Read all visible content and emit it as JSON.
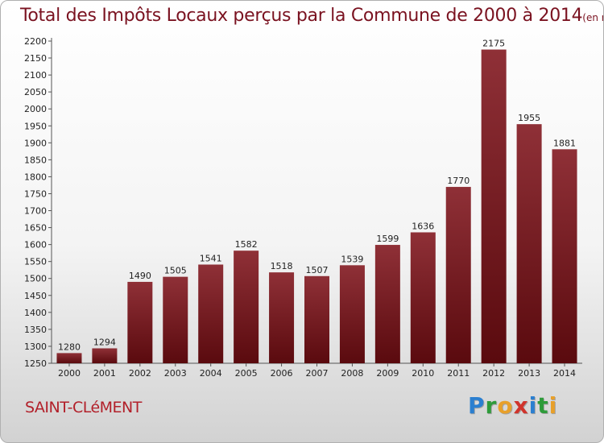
{
  "header": {
    "title": "Total des Impôts Locaux perçus par la Commune de 2000 à 2014",
    "unit": "(en milliers d'€)"
  },
  "footer": {
    "commune": "SAINT-CLéMENT",
    "logo_letters": [
      {
        "ch": "P",
        "color": "#2b7fd0"
      },
      {
        "ch": "r",
        "color": "#2e9b3a"
      },
      {
        "ch": "o",
        "color": "#e8a02a"
      },
      {
        "ch": "x",
        "color": "#d0342c"
      },
      {
        "ch": "i",
        "color": "#2b7fd0"
      },
      {
        "ch": "t",
        "color": "#2e9b3a"
      },
      {
        "ch": "i",
        "color": "#e8a02a"
      }
    ]
  },
  "chart_data": {
    "type": "bar",
    "categories": [
      "2000",
      "2001",
      "2002",
      "2003",
      "2004",
      "2005",
      "2006",
      "2007",
      "2008",
      "2009",
      "2010",
      "2011",
      "2012",
      "2013",
      "2014"
    ],
    "values": [
      1280,
      1294,
      1490,
      1505,
      1541,
      1582,
      1518,
      1507,
      1539,
      1599,
      1636,
      1770,
      2175,
      1955,
      1881
    ],
    "ylim": [
      1250,
      2200
    ],
    "ytick_step": 50,
    "grid": false,
    "bar_color_dark": "#5a0a0e",
    "bar_color_light": "#8f3037"
  }
}
